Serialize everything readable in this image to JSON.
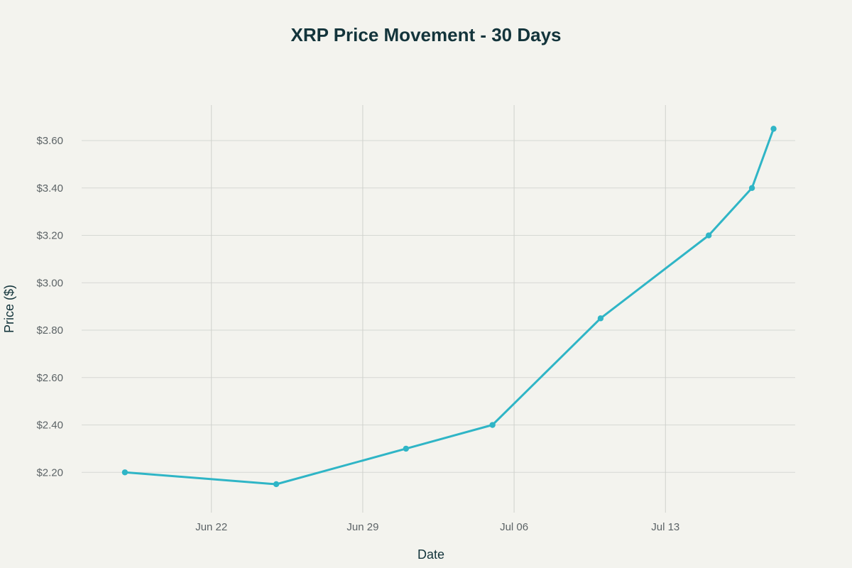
{
  "chart_data": {
    "type": "line",
    "title": "XRP Price Movement - 30 Days",
    "xlabel": "Date",
    "ylabel": "Price ($)",
    "x_tick_dates": [
      "2025-06-22",
      "2025-06-29",
      "2025-07-06",
      "2025-07-13"
    ],
    "x_tick_labels": [
      "Jun 22",
      "Jun 29",
      "Jul 06",
      "Jul 13"
    ],
    "y_ticks": [
      2.2,
      2.4,
      2.6,
      2.8,
      3.0,
      3.2,
      3.4,
      3.6
    ],
    "y_tick_labels": [
      "$2.20",
      "$2.40",
      "$2.60",
      "$2.80",
      "$3.00",
      "$3.20",
      "$3.40",
      "$3.60"
    ],
    "xlim": [
      "2025-06-16",
      "2025-07-19"
    ],
    "ylim": [
      2.03,
      3.75
    ],
    "grid": true,
    "legend": false,
    "series": [
      {
        "color": "#2fb5c6",
        "x": [
          "2025-06-18",
          "2025-06-25",
          "2025-07-01",
          "2025-07-05",
          "2025-07-10",
          "2025-07-15",
          "2025-07-17",
          "2025-07-18"
        ],
        "values": [
          2.2,
          2.15,
          2.3,
          2.4,
          2.85,
          3.2,
          3.4,
          3.65
        ]
      }
    ]
  }
}
